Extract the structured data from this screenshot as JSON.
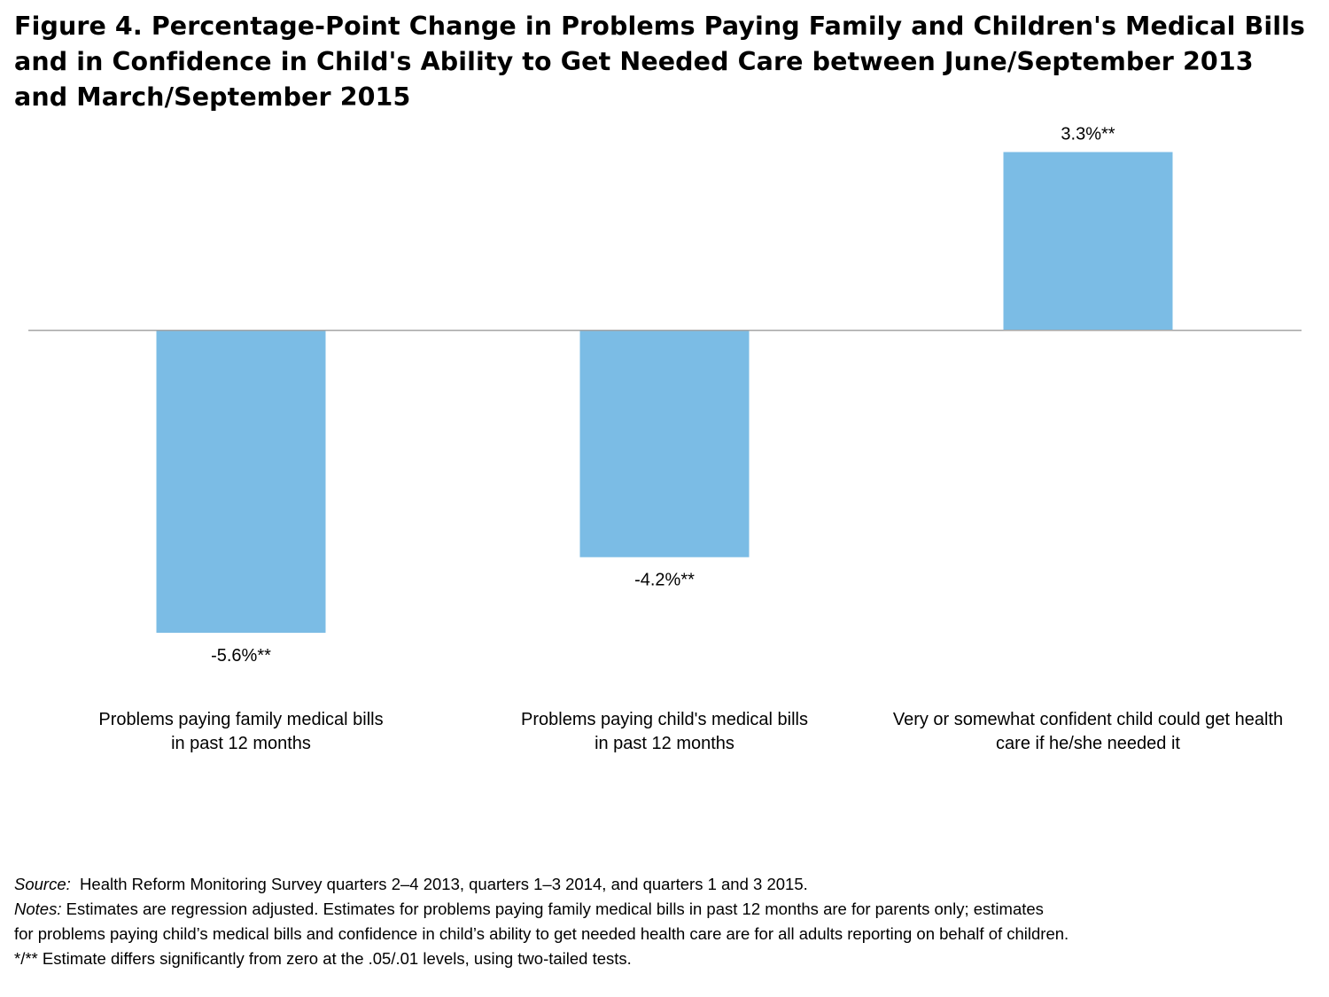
{
  "figure": {
    "title_lines": [
      "Figure 4. Percentage-Point Change in Problems Paying Family and Children's Medical Bills",
      "and in Confidence in Child's Ability to Get Needed Care between June/September 2013",
      "and March/September 2015"
    ]
  },
  "chart_data": {
    "type": "bar",
    "title": "Figure 4. Percentage-Point Change in Problems Paying Family and Children's Medical Bills and in Confidence in Child's Ability to Get Needed Care between June/September 2013 and March/September 2015",
    "xlabel": "",
    "ylabel": "",
    "categories": [
      "Problems paying family medical bills in past 12 months",
      "Problems paying child's medical bills in past 12 months",
      "Very or somewhat confident child could get health care if he/she needed it"
    ],
    "category_lines": [
      [
        "Problems paying family medical bills",
        "in past 12 months"
      ],
      [
        "Problems paying child's medical bills",
        "in past 12 months"
      ],
      [
        "Very or somewhat confident child could get health",
        "care if he/she needed it"
      ]
    ],
    "values": [
      -5.6,
      -4.2,
      3.3
    ],
    "data_labels": [
      "-5.6%**",
      "-4.2%**",
      "3.3%**"
    ],
    "ylim": [
      -6.6,
      3.9
    ],
    "grid": false,
    "legend": "none",
    "bar_color": "#7bbce5",
    "baseline_color": "#a6a6a6"
  },
  "footnotes": {
    "source_label": "Source:",
    "source_text": "Health Reform Monitoring Survey quarters 2–4 2013, quarters 1–3 2014, and quarters 1 and 3 2015.",
    "notes_label": "Notes:",
    "notes_line1": "Estimates are regression adjusted. Estimates for problems paying family medical bills in past 12 months are for parents only; estimates",
    "notes_line2": "for problems paying child’s medical bills and confidence in child’s ability to get needed health care are for all adults reporting on behalf of children.",
    "significance": "*/** Estimate differs significantly from zero at the .05/.01 levels, using two-tailed tests."
  }
}
